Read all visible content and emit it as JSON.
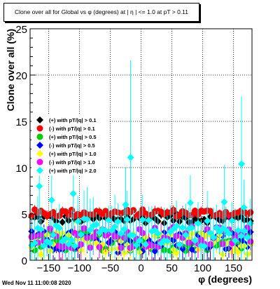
{
  "title": "Clone  over all for Global vs φ (degrees) at | η | <= 1.0 at pT > 0.11",
  "timestamp": "Wed Nov 11 11:00:08 2020",
  "chart_data": {
    "type": "scatter",
    "xlabel": "φ (degrees)",
    "ylabel": "Clone  over all (%)",
    "xlim": [
      -180,
      180
    ],
    "ylim": [
      0,
      25
    ],
    "x_ticks": [
      -150,
      -100,
      -50,
      0,
      50,
      100,
      150
    ],
    "y_ticks": [
      0,
      5,
      10,
      15,
      20,
      25
    ],
    "grid": true,
    "legend_position": "middle-left",
    "series": [
      {
        "name": "(+) with pT/|q| > 0.1",
        "color": "#000000",
        "marker": "diamond",
        "mean": 4.5,
        "spread": 0.5,
        "err": 0.5
      },
      {
        "name": "(-) with pT/|q| > 0.1",
        "color": "#ff0000",
        "marker": "circle",
        "mean": 5.1,
        "spread": 0.4,
        "err": 0.5
      },
      {
        "name": "(+) with pT/|q| > 0.5",
        "color": "#00cc00",
        "marker": "circle",
        "mean": 2.0,
        "spread": 1.0,
        "err": 1.2
      },
      {
        "name": "(-) with pT/|q| > 0.5",
        "color": "#0000ff",
        "marker": "diamond",
        "mean": 2.0,
        "spread": 1.2,
        "err": 1.5
      },
      {
        "name": "(+) with pT/|q| > 1.0",
        "color": "#ffff00",
        "marker": "diamond",
        "mean": 1.8,
        "spread": 1.2,
        "err": 1.5
      },
      {
        "name": "(-) with pT/|q| > 1.0",
        "color": "#ff00ff",
        "marker": "circle",
        "mean": 2.5,
        "spread": 1.2,
        "err": 1.8
      },
      {
        "name": "(+) with pT/|q| > 2.0",
        "color": "#00ffff",
        "marker": "diamond",
        "mean": 3.0,
        "spread": 1.5,
        "err": 3.0,
        "highlights": [
          {
            "x": -165,
            "y": 8.0,
            "err": 4
          },
          {
            "x": -145,
            "y": 6.5,
            "err": 3
          },
          {
            "x": -110,
            "y": 7.2,
            "err": 4
          },
          {
            "x": -25,
            "y": 6.0,
            "err": 4
          },
          {
            "x": -17,
            "y": 11.1,
            "err": 10.5
          },
          {
            "x": 80,
            "y": 6.2,
            "err": 3
          },
          {
            "x": 135,
            "y": 6.3,
            "err": 4
          },
          {
            "x": 163,
            "y": 10.4,
            "err": 7.3
          },
          {
            "x": 167,
            "y": 5.7,
            "err": 3
          }
        ]
      }
    ]
  }
}
